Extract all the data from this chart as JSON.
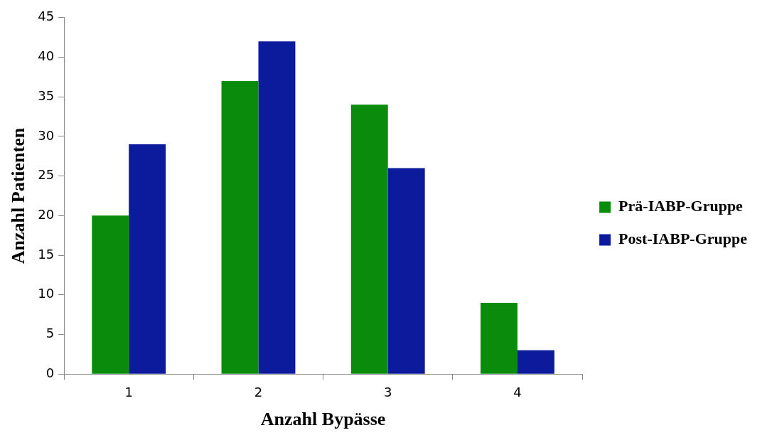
{
  "chart_data": {
    "type": "bar",
    "xlabel": "Anzahl Bypässe",
    "ylabel": "Anzahl Patienten",
    "categories": [
      "1",
      "2",
      "3",
      "4"
    ],
    "series": [
      {
        "name": "Prä-IABP-Gruppe",
        "color": "#0b8b0b",
        "values": [
          20,
          37,
          34,
          9
        ]
      },
      {
        "name": "Post-IABP-Gruppe",
        "color": "#0c1b9c",
        "values": [
          29,
          42,
          26,
          3
        ]
      }
    ],
    "ylim": [
      0,
      45
    ],
    "yticks": [
      0,
      5,
      10,
      15,
      20,
      25,
      30,
      35,
      40,
      45
    ],
    "grid": false,
    "legend": "right"
  }
}
